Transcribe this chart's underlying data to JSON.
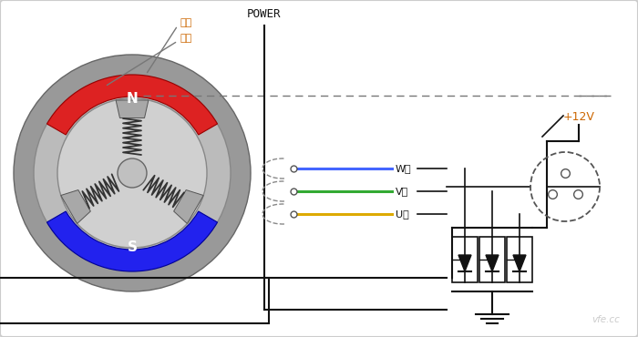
{
  "bg_color": "#ffffff",
  "border_color": "#cccccc",
  "N_color": "#dd2222",
  "S_color": "#2222ee",
  "label_zhuan": "转子",
  "label_ding": "定子",
  "label_N": "N",
  "label_S": "S",
  "label_power": "POWER",
  "label_12v": "+12V",
  "label_W": "W相",
  "label_V": "V相",
  "label_U": "U相",
  "wire_W_color": "#4466ff",
  "wire_V_color": "#33aa33",
  "wire_U_color": "#ddaa00",
  "line_color": "#111111",
  "watermark": "vfe.cc"
}
